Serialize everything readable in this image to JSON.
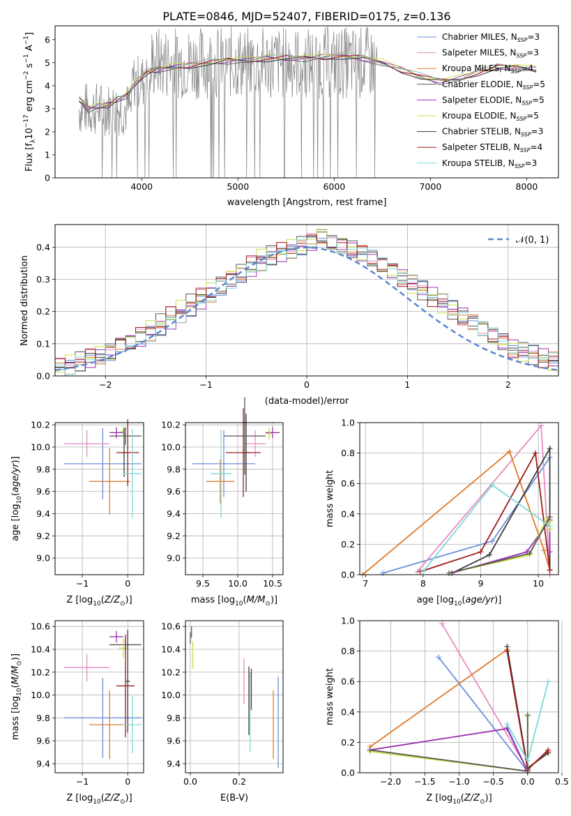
{
  "title": "PLATE=0846, MJD=52407, FIBERID=0175, z=0.136",
  "colors": {
    "chabrier_miles": "#6a8fd8",
    "salpeter_miles": "#e88ac0",
    "kroupa_miles": "#e07b2b",
    "chabrier_elodie": "#555555",
    "salpeter_elodie": "#9b30b0",
    "kroupa_elodie": "#c8e040",
    "chabrier_stelib": "#3a3a3a",
    "salpeter_stelib": "#9e1a1a",
    "kroupa_stelib": "#7fd8d8",
    "data": "#808080",
    "normal": "#5b84d1"
  },
  "legend": [
    {
      "key": "chabrier_miles",
      "label": "Chabrier MILES, N",
      "sub": "SSP",
      "tail": "=3"
    },
    {
      "key": "salpeter_miles",
      "label": "Salpeter MILES, N",
      "sub": "SSP",
      "tail": "=3"
    },
    {
      "key": "kroupa_miles",
      "label": "Kroupa MILES, N",
      "sub": "SSP",
      "tail": "=4"
    },
    {
      "key": "chabrier_elodie",
      "label": "Chabrier ELODIE, N",
      "sub": "SSP",
      "tail": "=5"
    },
    {
      "key": "salpeter_elodie",
      "label": "Salpeter ELODIE, N",
      "sub": "SSP",
      "tail": "=5"
    },
    {
      "key": "kroupa_elodie",
      "label": "Kroupa ELODIE, N",
      "sub": "SSP",
      "tail": "=5"
    },
    {
      "key": "chabrier_stelib",
      "label": "Chabrier STELIB, N",
      "sub": "SSP",
      "tail": "=3"
    },
    {
      "key": "salpeter_stelib",
      "label": "Salpeter STELIB, N",
      "sub": "SSP",
      "tail": "=4"
    },
    {
      "key": "kroupa_stelib",
      "label": "Kroupa STELIB, N",
      "sub": "SSP",
      "tail": "=3"
    }
  ],
  "chart_data": [
    {
      "id": "spectrum",
      "type": "line",
      "xlabel": "wavelength [Angstrom, rest frame]",
      "ylabel": "Flux [f_λ 10^-17 erg cm^-2 s^-1 A^-1]",
      "xlim": [
        3100,
        8330
      ],
      "ylim": [
        0,
        6.6
      ],
      "xticks": [
        "4000",
        "5000",
        "6000",
        "7000",
        "8000"
      ],
      "yticks": [
        "0",
        "1",
        "2",
        "3",
        "4",
        "5",
        "6"
      ],
      "model_x": [
        3350,
        3450,
        3550,
        3650,
        3750,
        3850,
        3950,
        4050,
        4150,
        4300,
        4500,
        4700,
        4900,
        5100,
        5300,
        5500,
        5700,
        5900,
        6100,
        6300,
        6500,
        6700,
        6900,
        7100,
        7300,
        7500,
        7700,
        7900,
        8100
      ],
      "model_y": [
        3.4,
        3.0,
        3.1,
        3.2,
        3.4,
        3.6,
        4.2,
        4.6,
        4.7,
        4.8,
        4.9,
        5.0,
        5.1,
        5.1,
        5.2,
        5.2,
        5.2,
        5.25,
        5.3,
        5.2,
        5.0,
        4.7,
        4.4,
        4.2,
        4.3,
        4.6,
        4.8,
        4.8,
        4.7
      ],
      "data_xrange": [
        3350,
        6450
      ],
      "data_ylevel": 5.0,
      "legend_loc": "upper right"
    },
    {
      "id": "residuals",
      "type": "histogram",
      "xlabel": "(data-model)/error",
      "ylabel": "Normed distribution",
      "xlim": [
        -2.5,
        2.5
      ],
      "ylim": [
        0,
        0.47
      ],
      "xticks": [
        "−2",
        "−1",
        "0",
        "1",
        "2"
      ],
      "yticks": [
        "0.0",
        "0.1",
        "0.2",
        "0.3",
        "0.4"
      ],
      "bin_width": 0.1,
      "series_values": [
        [
          0.02,
          0.03,
          0.04,
          0.05,
          0.06,
          0.07,
          0.09,
          0.1,
          0.11,
          0.13,
          0.15,
          0.17,
          0.19,
          0.21,
          0.23,
          0.25,
          0.27,
          0.29,
          0.31,
          0.33,
          0.35,
          0.37,
          0.38,
          0.39,
          0.4,
          0.41,
          0.43,
          0.41,
          0.4,
          0.39,
          0.38,
          0.37,
          0.35,
          0.33,
          0.31,
          0.29,
          0.27,
          0.25,
          0.23,
          0.21,
          0.19,
          0.17,
          0.15,
          0.13,
          0.11,
          0.09,
          0.08,
          0.07,
          0.06,
          0.05
        ],
        [
          0.03,
          0.04,
          0.05,
          0.06,
          0.07,
          0.08,
          0.1,
          0.11,
          0.13,
          0.15,
          0.17,
          0.19,
          0.21,
          0.23,
          0.25,
          0.27,
          0.29,
          0.31,
          0.33,
          0.35,
          0.37,
          0.38,
          0.39,
          0.4,
          0.41,
          0.42,
          0.44,
          0.42,
          0.41,
          0.4,
          0.38,
          0.36,
          0.34,
          0.32,
          0.3,
          0.28,
          0.26,
          0.24,
          0.22,
          0.2,
          0.18,
          0.16,
          0.14,
          0.12,
          0.1,
          0.08,
          0.07,
          0.06,
          0.05,
          0.04
        ]
      ],
      "normal_label": "𝒩(0, 1)",
      "legend_loc": "upper right"
    },
    {
      "id": "age_vs_Z",
      "type": "errorbar",
      "xlabel": "Z [log10(Z/Z⊙)]",
      "ylabel": "age  [log10(age/yr)]",
      "xlim": [
        -1.6,
        0.35
      ],
      "ylim": [
        8.85,
        10.22
      ],
      "xticks": [
        "−1",
        "0"
      ],
      "yticks": [
        "9.0",
        "9.2",
        "9.4",
        "9.6",
        "9.8",
        "10.0",
        "10.2"
      ],
      "points": [
        {
          "key": "chabrier_miles",
          "x": -0.55,
          "xerr": 0.85,
          "y": 9.85,
          "yerr": 0.32
        },
        {
          "key": "salpeter_miles",
          "x": -0.9,
          "xerr": 0.5,
          "y": 10.03,
          "yerr": 0.12
        },
        {
          "key": "kroupa_miles",
          "x": -0.4,
          "xerr": 0.45,
          "y": 9.69,
          "yerr": 0.3
        },
        {
          "key": "chabrier_elodie",
          "x": -0.05,
          "xerr": 0.35,
          "y": 10.1,
          "yerr": 0.08
        },
        {
          "key": "salpeter_elodie",
          "x": -0.25,
          "xerr": 0.15,
          "y": 10.13,
          "yerr": 0.05
        },
        {
          "key": "kroupa_elodie",
          "x": -0.1,
          "xerr": 0.05,
          "y": 10.14,
          "yerr": 0.05
        },
        {
          "key": "chabrier_stelib",
          "x": -0.08,
          "xerr": 0.05,
          "y": 9.95,
          "yerr": 0.22
        },
        {
          "key": "salpeter_stelib",
          "x": 0.0,
          "xerr": 0.25,
          "y": 9.95,
          "yerr": 0.3
        },
        {
          "key": "kroupa_stelib",
          "x": 0.1,
          "xerr": 0.2,
          "y": 9.76,
          "yerr": 0.4
        }
      ]
    },
    {
      "id": "age_vs_mass",
      "type": "errorbar",
      "xlabel": "mass [log10(M/M⊙)]",
      "ylabel": "",
      "xlim": [
        9.25,
        10.65
      ],
      "ylim": [
        8.85,
        10.22
      ],
      "xticks": [
        "9.5",
        "10.0",
        "10.5"
      ],
      "yticks": [
        "9.0",
        "9.2",
        "9.4",
        "9.6",
        "9.8",
        "10.0",
        "10.2"
      ],
      "points": [
        {
          "key": "chabrier_miles",
          "x": 9.8,
          "xerr": 0.45,
          "y": 9.85,
          "yerr": 0.3
        },
        {
          "key": "salpeter_miles",
          "x": 10.25,
          "xerr": 0.15,
          "y": 10.03,
          "yerr": 0.12
        },
        {
          "key": "kroupa_miles",
          "x": 9.75,
          "xerr": 0.2,
          "y": 9.69,
          "yerr": 0.2
        },
        {
          "key": "chabrier_elodie",
          "x": 10.1,
          "xerr": 0.3,
          "y": 10.1,
          "yerr": 0.35
        },
        {
          "key": "salpeter_elodie",
          "x": 10.5,
          "xerr": 0.1,
          "y": 10.13,
          "yerr": 0.05
        },
        {
          "key": "kroupa_elodie",
          "x": 10.45,
          "xerr": 0.05,
          "y": 10.12,
          "yerr": 0.05
        },
        {
          "key": "chabrier_stelib",
          "x": 10.12,
          "xerr": 0.05,
          "y": 9.95,
          "yerr": 0.35
        },
        {
          "key": "salpeter_stelib",
          "x": 10.08,
          "xerr": 0.25,
          "y": 9.95,
          "yerr": 0.4
        },
        {
          "key": "kroupa_stelib",
          "x": 9.76,
          "xerr": 0.15,
          "y": 9.76,
          "yerr": 0.4
        }
      ]
    },
    {
      "id": "weight_vs_age",
      "type": "line",
      "xlabel": "age  [log10(age/yr)]",
      "ylabel": "mass weight",
      "xlim": [
        6.9,
        10.35
      ],
      "ylim": [
        0,
        1
      ],
      "xticks": [
        "7",
        "8",
        "9",
        "10"
      ],
      "yticks": [
        "0.0",
        "0.2",
        "0.4",
        "0.6",
        "0.8",
        "1.0"
      ],
      "series": [
        {
          "key": "chabrier_miles",
          "x": [
            7.3,
            9.2,
            10.2
          ],
          "y": [
            0.01,
            0.22,
            0.77
          ]
        },
        {
          "key": "salpeter_miles",
          "x": [
            7.9,
            10.05,
            10.2
          ],
          "y": [
            0.02,
            0.98,
            0.0
          ]
        },
        {
          "key": "kroupa_miles",
          "x": [
            6.95,
            9.5,
            10.1,
            10.2
          ],
          "y": [
            0.0,
            0.81,
            0.16,
            0.03
          ]
        },
        {
          "key": "chabrier_stelib",
          "x": [
            8.5,
            9.15,
            10.2,
            10.2
          ],
          "y": [
            0.01,
            0.13,
            0.83,
            0.03
          ]
        },
        {
          "key": "salpeter_stelib",
          "x": [
            7.95,
            9.0,
            9.95,
            10.2
          ],
          "y": [
            0.02,
            0.15,
            0.8,
            0.03
          ]
        },
        {
          "key": "salpeter_elodie",
          "x": [
            8.5,
            9.8,
            10.2,
            10.2,
            10.2
          ],
          "y": [
            0.01,
            0.15,
            0.36,
            0.3,
            0.15
          ]
        },
        {
          "key": "kroupa_elodie",
          "x": [
            8.45,
            9.85,
            10.15,
            10.2,
            10.2
          ],
          "y": [
            0.01,
            0.13,
            0.37,
            0.3,
            0.35
          ]
        },
        {
          "key": "chabrier_elodie",
          "x": [
            8.45,
            9.85,
            10.2
          ],
          "y": [
            0.01,
            0.14,
            0.38
          ]
        },
        {
          "key": "kroupa_stelib",
          "x": [
            8.0,
            9.2,
            10.2
          ],
          "y": [
            0.02,
            0.59,
            0.32
          ]
        }
      ]
    },
    {
      "id": "mass_vs_Z",
      "type": "errorbar",
      "xlabel": "Z [log10(Z/Z⊙)]",
      "ylabel": "mass [log10(M/M⊙)]",
      "xlim": [
        -1.6,
        0.35
      ],
      "ylim": [
        9.32,
        10.65
      ],
      "xticks": [
        "−1",
        "0"
      ],
      "yticks": [
        "9.4",
        "9.6",
        "9.8",
        "10.0",
        "10.2",
        "10.4",
        "10.6"
      ],
      "points": [
        {
          "key": "chabrier_miles",
          "x": -0.55,
          "xerr": 0.85,
          "y": 9.8,
          "yerr": 0.35
        },
        {
          "key": "salpeter_miles",
          "x": -0.9,
          "xerr": 0.5,
          "y": 10.24,
          "yerr": 0.12
        },
        {
          "key": "kroupa_miles",
          "x": -0.4,
          "xerr": 0.45,
          "y": 9.74,
          "yerr": 0.3
        },
        {
          "key": "chabrier_elodie",
          "x": -0.05,
          "xerr": 0.35,
          "y": 10.44,
          "yerr": 0.05
        },
        {
          "key": "salpeter_elodie",
          "x": -0.25,
          "xerr": 0.15,
          "y": 10.51,
          "yerr": 0.05
        },
        {
          "key": "kroupa_elodie",
          "x": -0.1,
          "xerr": 0.1,
          "y": 10.41,
          "yerr": 0.08
        },
        {
          "key": "chabrier_stelib",
          "x": 0.0,
          "xerr": 0.05,
          "y": 10.12,
          "yerr": 0.45
        },
        {
          "key": "salpeter_stelib",
          "x": -0.05,
          "xerr": 0.2,
          "y": 10.08,
          "yerr": 0.45
        },
        {
          "key": "kroupa_stelib",
          "x": 0.1,
          "xerr": 0.2,
          "y": 9.74,
          "yerr": 0.25
        }
      ]
    },
    {
      "id": "mass_vs_ebv",
      "type": "errorbar",
      "xlabel": "E(B-V)",
      "ylabel": "",
      "xlim": [
        -0.02,
        0.38
      ],
      "ylim": [
        9.32,
        10.65
      ],
      "xticks": [
        "0.0",
        "0.2"
      ],
      "yticks": [
        "9.4",
        "9.6",
        "9.8",
        "10.0",
        "10.2",
        "10.4",
        "10.6"
      ],
      "points": [
        {
          "key": "chabrier_miles",
          "x": 0.36,
          "xerr": 0.0,
          "y": 9.76,
          "yerr": 0.4
        },
        {
          "key": "salpeter_miles",
          "x": 0.22,
          "xerr": 0.0,
          "y": 10.12,
          "yerr": 0.2
        },
        {
          "key": "kroupa_miles",
          "x": 0.34,
          "xerr": 0.0,
          "y": 9.74,
          "yerr": 0.3
        },
        {
          "key": "chabrier_elodie",
          "x": 0.0,
          "xerr": 0.0,
          "y": 10.5,
          "yerr": 0.05
        },
        {
          "key": "salpeter_elodie",
          "x": 0.005,
          "xerr": 0.0,
          "y": 10.55,
          "yerr": 0.05
        },
        {
          "key": "kroupa_elodie",
          "x": 0.01,
          "xerr": 0.0,
          "y": 10.35,
          "yerr": 0.12
        },
        {
          "key": "chabrier_stelib",
          "x": 0.24,
          "xerr": 0.0,
          "y": 9.95,
          "yerr": 0.3
        },
        {
          "key": "salpeter_stelib",
          "x": 0.25,
          "xerr": 0.0,
          "y": 10.05,
          "yerr": 0.18
        },
        {
          "key": "kroupa_stelib",
          "x": 0.245,
          "xerr": 0.0,
          "y": 9.85,
          "yerr": 0.35
        }
      ]
    },
    {
      "id": "weight_vs_Z",
      "type": "line",
      "xlabel": "Z [log10(Z/Z⊙)]",
      "ylabel": "mass weight",
      "xlim": [
        -2.45,
        0.45
      ],
      "ylim": [
        0,
        1
      ],
      "xticks": [
        "−2.0",
        "−1.5",
        "−1.0",
        "−0.5",
        "0.0",
        "0.5"
      ],
      "yticks": [
        "0.0",
        "0.2",
        "0.4",
        "0.6",
        "0.8",
        "1.0"
      ],
      "series": [
        {
          "key": "chabrier_miles",
          "x": [
            -1.3,
            0.0,
            -0.3
          ],
          "y": [
            0.76,
            0.01,
            0.3
          ]
        },
        {
          "key": "salpeter_miles",
          "x": [
            -1.25,
            0.0
          ],
          "y": [
            0.98,
            0.02
          ]
        },
        {
          "key": "kroupa_miles",
          "x": [
            -2.3,
            -0.3,
            0.0,
            0.3
          ],
          "y": [
            0.17,
            0.81,
            0.03,
            0.14
          ]
        },
        {
          "key": "chabrier_stelib",
          "x": [
            -0.3,
            0.0,
            0.3
          ],
          "y": [
            0.83,
            0.03,
            0.13
          ]
        },
        {
          "key": "salpeter_stelib",
          "x": [
            -0.3,
            0.0,
            0.3
          ],
          "y": [
            0.8,
            0.02,
            0.15
          ]
        },
        {
          "key": "salpeter_elodie",
          "x": [
            -2.3,
            -0.3,
            0.0
          ],
          "y": [
            0.15,
            0.29,
            0.01
          ]
        },
        {
          "key": "kroupa_elodie",
          "x": [
            -2.3,
            0.0,
            0.0
          ],
          "y": [
            0.14,
            0.01,
            0.37
          ]
        },
        {
          "key": "chabrier_elodie",
          "x": [
            -2.3,
            0.0,
            0.0
          ],
          "y": [
            0.15,
            0.01,
            0.38
          ]
        },
        {
          "key": "kroupa_stelib",
          "x": [
            -0.3,
            0.0,
            0.3
          ],
          "y": [
            0.32,
            0.08,
            0.6
          ]
        }
      ]
    }
  ]
}
